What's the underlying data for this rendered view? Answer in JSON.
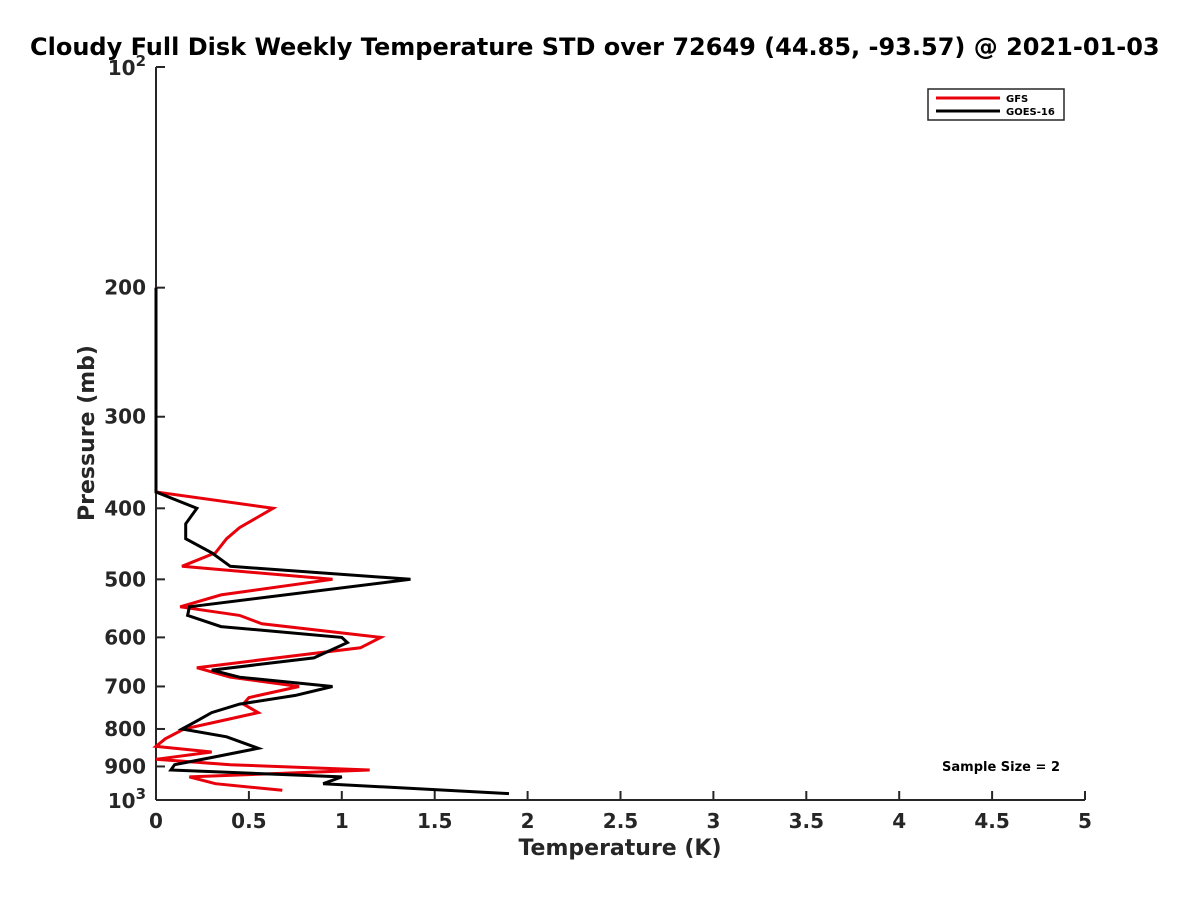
{
  "chart_data": {
    "type": "line",
    "title": "Cloudy Full Disk Weekly Temperature STD over 72649 (44.85, -93.57) @ 2021-01-03",
    "xlabel": "Temperature (K)",
    "ylabel": "Pressure (mb)",
    "xlim": [
      0,
      5
    ],
    "ylim": [
      100,
      1000
    ],
    "y_scale": "log",
    "y_reversed": true,
    "x_ticks": [
      0,
      0.5,
      1,
      1.5,
      2,
      2.5,
      3,
      3.5,
      4,
      4.5,
      5
    ],
    "x_tick_labels": [
      "0",
      "0.5",
      "1",
      "1.5",
      "2",
      "2.5",
      "3",
      "3.5",
      "4",
      "4.5",
      "5"
    ],
    "y_ticks": [
      200,
      300,
      400,
      500,
      600,
      700,
      800,
      900
    ],
    "y_tick_labels": [
      "200",
      "300",
      "400",
      "500",
      "600",
      "700",
      "800",
      "900"
    ],
    "y_end_labels": {
      "top": {
        "value": 100,
        "base": "10",
        "exp": "2"
      },
      "bottom": {
        "value": 1000,
        "base": "10",
        "exp": "3"
      }
    },
    "legend_position": "top-right",
    "grid": false,
    "series": [
      {
        "name": "GFS",
        "color": "#e8000b",
        "points": [
          [
            0,
            200
          ],
          [
            0,
            250
          ],
          [
            0,
            300
          ],
          [
            0,
            350
          ],
          [
            0,
            380
          ],
          [
            0.63,
            400
          ],
          [
            0.45,
            425
          ],
          [
            0.38,
            440
          ],
          [
            0.32,
            460
          ],
          [
            0.14,
            480
          ],
          [
            0.95,
            500
          ],
          [
            0.35,
            525
          ],
          [
            0.13,
            545
          ],
          [
            0.45,
            560
          ],
          [
            0.57,
            575
          ],
          [
            1.21,
            600
          ],
          [
            1.1,
            620
          ],
          [
            0.65,
            640
          ],
          [
            0.22,
            660
          ],
          [
            0.4,
            680
          ],
          [
            0.77,
            700
          ],
          [
            0.5,
            725
          ],
          [
            0.47,
            740
          ],
          [
            0.55,
            760
          ],
          [
            0.35,
            780
          ],
          [
            0.15,
            800
          ],
          [
            0.05,
            825
          ],
          [
            0.0,
            845
          ],
          [
            0.3,
            860
          ],
          [
            0.0,
            880
          ],
          [
            0.4,
            895
          ],
          [
            1.15,
            910
          ],
          [
            0.18,
            930
          ],
          [
            0.32,
            950
          ],
          [
            0.68,
            970
          ]
        ]
      },
      {
        "name": "GOES-16",
        "color": "#000000",
        "points": [
          [
            0,
            200
          ],
          [
            0,
            250
          ],
          [
            0,
            300
          ],
          [
            0,
            350
          ],
          [
            0,
            380
          ],
          [
            0.22,
            400
          ],
          [
            0.16,
            420
          ],
          [
            0.16,
            440
          ],
          [
            0.3,
            460
          ],
          [
            0.4,
            480
          ],
          [
            1.37,
            500
          ],
          [
            0.18,
            545
          ],
          [
            0.17,
            560
          ],
          [
            0.35,
            580
          ],
          [
            1.0,
            600
          ],
          [
            1.03,
            610
          ],
          [
            0.85,
            640
          ],
          [
            0.3,
            665
          ],
          [
            0.45,
            680
          ],
          [
            0.95,
            700
          ],
          [
            0.75,
            720
          ],
          [
            0.45,
            740
          ],
          [
            0.3,
            760
          ],
          [
            0.22,
            780
          ],
          [
            0.14,
            800
          ],
          [
            0.38,
            820
          ],
          [
            0.55,
            850
          ],
          [
            0.3,
            875
          ],
          [
            0.1,
            895
          ],
          [
            0.08,
            910
          ],
          [
            1.0,
            930
          ],
          [
            0.9,
            950
          ],
          [
            1.9,
            980
          ]
        ]
      }
    ],
    "annotation": "Sample Size = 2"
  }
}
